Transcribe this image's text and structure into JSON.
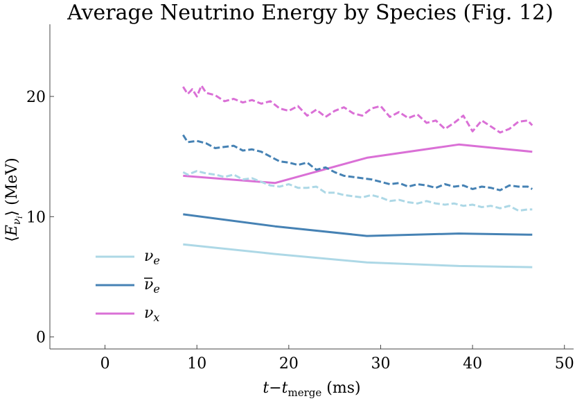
{
  "chart_data": {
    "type": "line",
    "title": "Average Neutrino Energy by Species (Fig. 12)",
    "xlim": [
      -6,
      51
    ],
    "ylim": [
      -1,
      26
    ],
    "xticks": [
      0,
      10,
      20,
      30,
      40,
      50
    ],
    "yticks": [
      0,
      10,
      20
    ],
    "grid": false,
    "legend_position": "bottom-left",
    "colors": {
      "nu_e": "#add8e6",
      "anti_nu_e": "#4682b4",
      "nu_x": "#da70d6"
    },
    "series": [
      {
        "key": "nu_e",
        "style": "solid",
        "x": [
          8.5,
          18.5,
          28.5,
          38.5,
          46.5
        ],
        "y": [
          7.7,
          6.9,
          6.2,
          5.9,
          5.8
        ]
      },
      {
        "key": "anti_nu_e",
        "style": "solid",
        "x": [
          8.5,
          18.5,
          28.5,
          38.5,
          46.5
        ],
        "y": [
          10.2,
          9.2,
          8.4,
          8.6,
          8.5
        ]
      },
      {
        "key": "nu_x",
        "style": "solid",
        "x": [
          8.5,
          18.5,
          28.5,
          38.5,
          46.5
        ],
        "y": [
          13.4,
          12.8,
          14.9,
          16.0,
          15.4
        ]
      },
      {
        "key": "nu_e",
        "style": "dashed",
        "x": [
          8.5,
          9,
          10,
          11,
          12,
          13,
          14,
          15,
          16,
          17,
          18,
          19,
          20,
          21,
          22,
          23,
          24,
          25,
          26,
          27,
          28,
          29,
          30,
          31,
          32,
          33,
          34,
          35,
          36,
          37,
          38,
          39,
          40,
          41,
          42,
          43,
          44,
          45,
          46,
          46.5
        ],
        "y": [
          13.7,
          13.5,
          13.8,
          13.6,
          13.5,
          13.3,
          13.5,
          13.1,
          13.2,
          12.9,
          12.6,
          12.5,
          12.7,
          12.4,
          12.4,
          12.5,
          12.0,
          12.0,
          11.8,
          11.7,
          11.6,
          11.8,
          11.6,
          11.3,
          11.4,
          11.2,
          11.1,
          11.3,
          11.1,
          11.0,
          11.1,
          10.9,
          11.0,
          10.8,
          10.9,
          10.7,
          10.9,
          10.5,
          10.6,
          10.6
        ]
      },
      {
        "key": "anti_nu_e",
        "style": "dashed",
        "x": [
          8.5,
          9,
          10,
          11,
          12,
          13,
          14,
          15,
          16,
          17,
          18,
          19,
          20,
          21,
          22,
          23,
          24,
          25,
          26,
          27,
          28,
          29,
          30,
          31,
          32,
          33,
          34,
          35,
          36,
          37,
          38,
          39,
          40,
          41,
          42,
          43,
          44,
          45,
          46,
          46.5
        ],
        "y": [
          16.8,
          16.2,
          16.3,
          16.1,
          15.7,
          15.8,
          15.9,
          15.5,
          15.6,
          15.4,
          15.0,
          14.6,
          14.5,
          14.3,
          14.5,
          13.9,
          14.1,
          13.7,
          13.4,
          13.3,
          13.2,
          13.1,
          12.9,
          12.7,
          12.8,
          12.5,
          12.7,
          12.6,
          12.4,
          12.7,
          12.5,
          12.6,
          12.3,
          12.5,
          12.4,
          12.2,
          12.6,
          12.5,
          12.5,
          12.3
        ]
      },
      {
        "key": "nu_x",
        "style": "dashed",
        "x": [
          8.5,
          9,
          9.5,
          10,
          10.5,
          11,
          12,
          13,
          14,
          15,
          16,
          17,
          18,
          19,
          20,
          21,
          22,
          23,
          24,
          25,
          26,
          27,
          28,
          29,
          30,
          31,
          32,
          33,
          34,
          35,
          36,
          37,
          38,
          39,
          40,
          41,
          42,
          43,
          44,
          45,
          46,
          46.5
        ],
        "y": [
          20.8,
          20.2,
          20.6,
          20.0,
          20.9,
          20.3,
          20.1,
          19.6,
          19.8,
          19.5,
          19.7,
          19.4,
          19.6,
          19.0,
          18.8,
          19.2,
          18.4,
          18.9,
          18.3,
          18.8,
          19.1,
          18.6,
          18.4,
          19.0,
          19.2,
          18.3,
          18.7,
          18.2,
          18.5,
          17.8,
          18.0,
          17.3,
          17.8,
          18.4,
          17.1,
          18.0,
          17.5,
          17.0,
          17.3,
          17.9,
          18.0,
          17.6
        ]
      }
    ],
    "xlabel": {
      "main": "t−t",
      "sub": "merge",
      "unit": " (ms)"
    },
    "ylabel": {
      "open": "⟨",
      "var": "E",
      "sub1": "ν",
      "sub2": "i",
      "close": "⟩",
      "unit": " (MeV)"
    },
    "legend": [
      {
        "key": "nu_e",
        "base": "ν",
        "sub": "e",
        "bar": false
      },
      {
        "key": "anti_nu_e",
        "base": "ν",
        "sub": "e",
        "bar": true
      },
      {
        "key": "nu_x",
        "base": "ν",
        "sub": "x",
        "bar": false
      }
    ]
  }
}
